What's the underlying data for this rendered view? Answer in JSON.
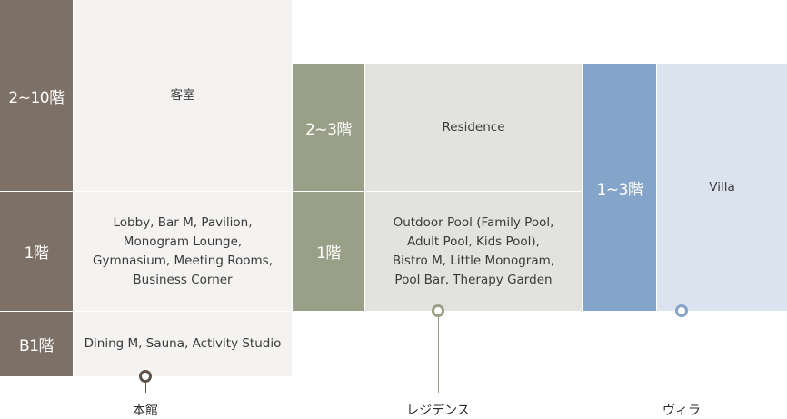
{
  "colors": {
    "main_floor": "#7d7167",
    "main_desc": "#f4f3f1",
    "residence_floor": "#9aa087",
    "residence_desc": "#e2e3de",
    "villa_floor": "#85a4c9",
    "villa_desc": "#dbe3ef"
  },
  "main": {
    "name": "本館",
    "rows": [
      {
        "floor": "2~10階",
        "desc": "客室"
      },
      {
        "floor": "1階",
        "desc": "Lobby, Bar M, Pavilion,\nMonogram Lounge,\nGymnasium, Meeting Rooms,\nBusiness Corner"
      },
      {
        "floor": "B1階",
        "desc": "Dining M, Sauna, Activity Studio"
      }
    ]
  },
  "residence": {
    "name": "レジデンス",
    "rows": [
      {
        "floor": "2~3階",
        "desc": "Residence"
      },
      {
        "floor": "1階",
        "desc": "Outdoor Pool (Family Pool,\nAdult Pool, Kids Pool),\nBistro M, Little Monogram,\nPool Bar, Therapy Garden"
      }
    ]
  },
  "villa": {
    "name": "ヴィラ",
    "rows": [
      {
        "floor": "1~3階",
        "desc": "Villa"
      }
    ]
  }
}
